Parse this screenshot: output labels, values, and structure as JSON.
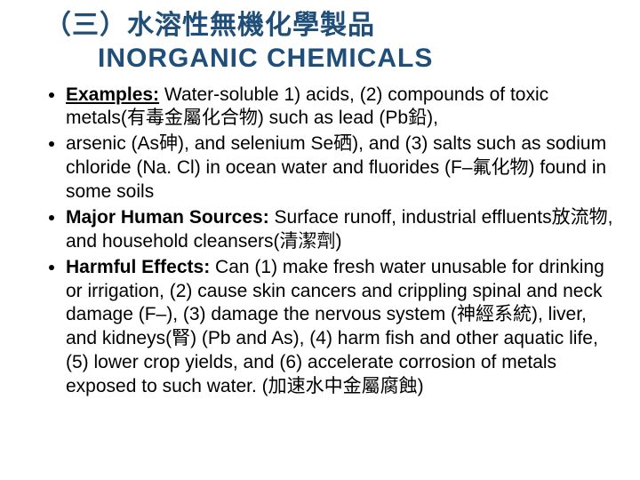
{
  "title": {
    "cn": "（三）水溶性無機化學製品",
    "en": "INORGANIC CHEMICALS",
    "color": "#1f4e79",
    "cn_fontsize": 30,
    "en_fontsize": 30
  },
  "body": {
    "fontsize": 21,
    "text_color": "#000000",
    "items": [
      {
        "label": "Examples:",
        "text": " Water-soluble 1) acids, (2) compounds of toxic metals(有毒金屬化合物) such as lead (Pb鉛),"
      },
      {
        "label": "",
        "text": "arsenic (As砷), and selenium Se硒), and (3) salts such as sodium chloride (Na. Cl) in ocean water and fluorides (F–氟化物) found in some soils"
      },
      {
        "label": "Major Human Sources:",
        "text": " Surface runoff, industrial effluents放流物, and household cleansers(清潔劑)"
      },
      {
        "label": "Harmful Effects:",
        "text": " Can (1) make fresh water unusable for drinking or irrigation, (2) cause skin cancers and crippling spinal and neck damage (F–), (3) damage the nervous system (神經系統), liver, and kidneys(腎) (Pb and As), (4) harm fish and other aquatic life, (5) lower crop yields, and (6) accelerate corrosion of metals exposed to such water. (加速水中金屬腐蝕)"
      }
    ]
  }
}
